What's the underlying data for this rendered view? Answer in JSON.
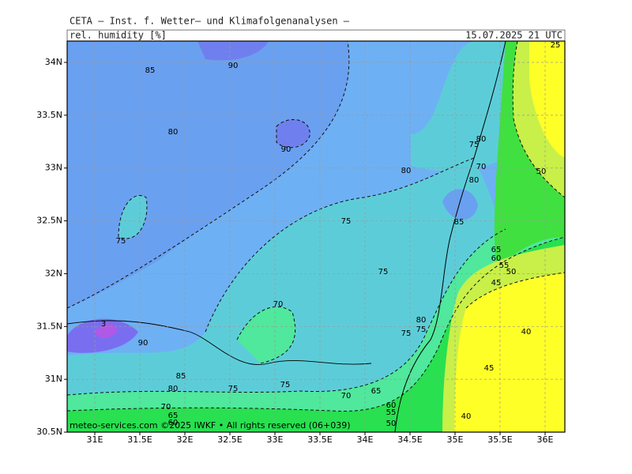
{
  "header": {
    "title": "CETA – Inst. f. Wetter– und Klimafolgenanalysen –",
    "parameter": "rel. humidity [%]",
    "valid_time": "15.07.2025 21 UTC"
  },
  "map": {
    "lon_labels": [
      "31E",
      "31.5E",
      "32E",
      "32.5E",
      "33E",
      "33.5E",
      "34E",
      "34.5E",
      "35E",
      "35.5E",
      "36E"
    ],
    "lat_labels": [
      "34N",
      "33.5N",
      "33N",
      "32.5N",
      "32N",
      "31.5N",
      "31N",
      "30.5N"
    ],
    "contour_labels": [
      85,
      90,
      80,
      90,
      75,
      80,
      75,
      75,
      70,
      85,
      65,
      60,
      55,
      50,
      45,
      80,
      70,
      75,
      80,
      50,
      25,
      90,
      85,
      80,
      75,
      75,
      70,
      65,
      60,
      55,
      50,
      80,
      75,
      75,
      70,
      65,
      60,
      40,
      45,
      40,
      3
    ],
    "footer": "meteo-services.com ©2025 IWKF • All rights reserved (06+039)"
  }
}
